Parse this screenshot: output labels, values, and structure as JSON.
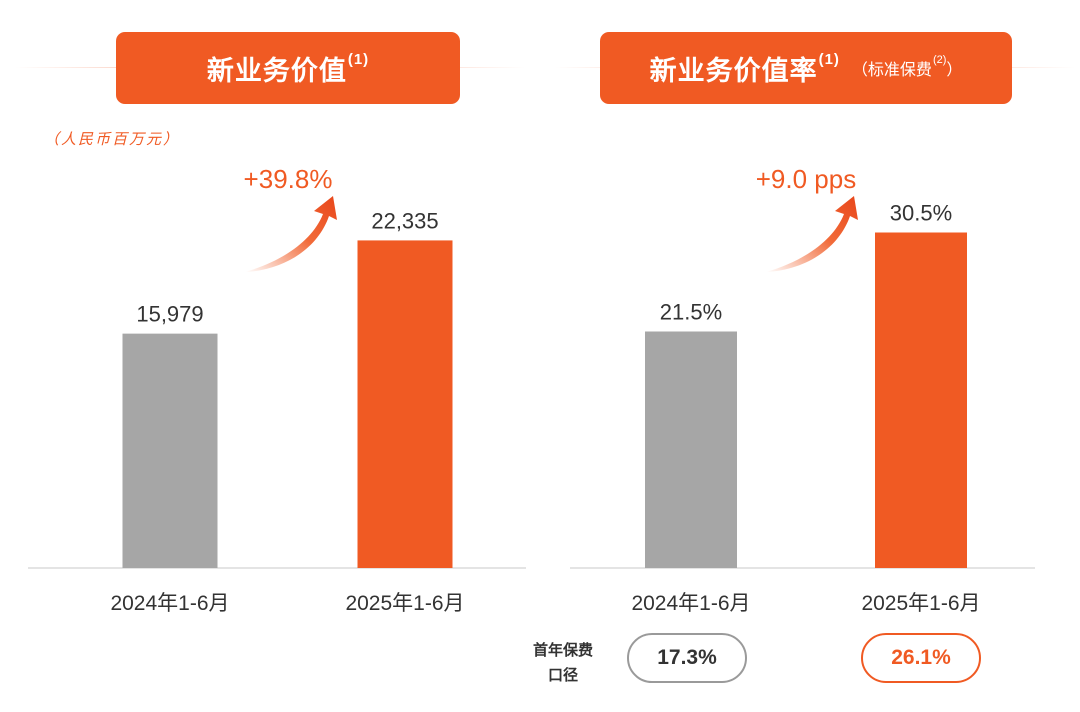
{
  "colors": {
    "accent": "#f05a23",
    "grey": "#a6a6a6",
    "text": "#333333"
  },
  "left_panel": {
    "title": "新业务价值",
    "title_sup": "(1)",
    "unit": "（人民币百万元）",
    "growth": "+39.8%"
  },
  "right_panel": {
    "title": "新业务价值率",
    "title_sup": "(1)",
    "subtitle": "（标准保费",
    "subtitle_sup": "(2)",
    "subtitle_close": "）",
    "growth": "+9.0 pps",
    "note_label_line1": "首年保费",
    "note_label_line2": "口径",
    "note_values": [
      "17.3%",
      "26.1%"
    ]
  },
  "chart_data": [
    {
      "type": "bar",
      "title": "新业务价值(1)",
      "unit": "人民币百万元",
      "categories": [
        "2024年1-6月",
        "2025年1-6月"
      ],
      "values": [
        15979,
        22335
      ],
      "value_labels": [
        "15,979",
        "22,335"
      ],
      "annotation": "+39.8%",
      "ylim": [
        0,
        30000
      ],
      "grid": false,
      "legend": "none"
    },
    {
      "type": "bar",
      "title": "新业务价值率(1)（标准保费(2)）",
      "categories": [
        "2024年1-6月",
        "2025年1-6月"
      ],
      "values": [
        21.5,
        30.5
      ],
      "value_labels": [
        "21.5%",
        "30.5%"
      ],
      "annotation": "+9.0 pps",
      "secondary_values": {
        "label": "首年保费口径",
        "values": [
          17.3,
          26.1
        ]
      },
      "ylim": [
        0,
        40
      ],
      "grid": false,
      "legend": "none"
    }
  ]
}
